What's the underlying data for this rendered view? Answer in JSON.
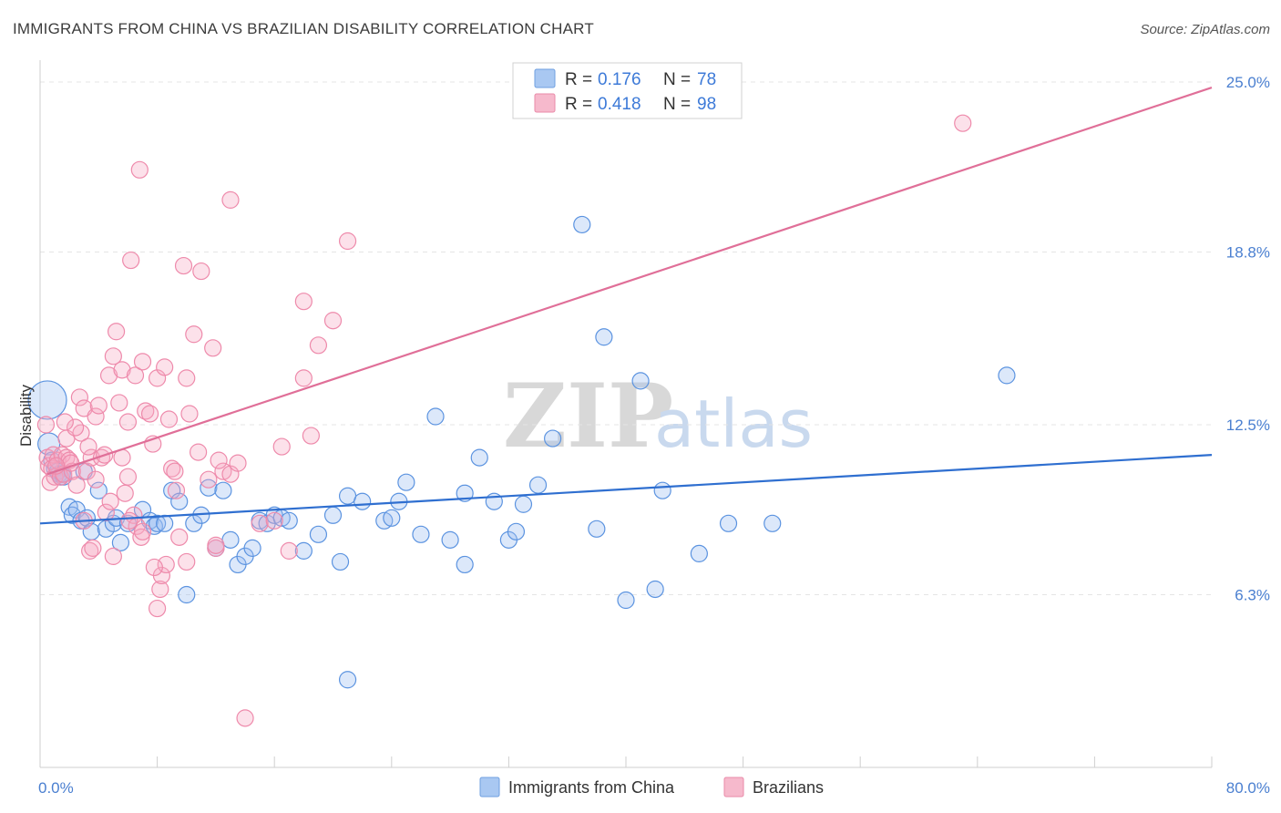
{
  "title": "IMMIGRANTS FROM CHINA VS BRAZILIAN DISABILITY CORRELATION CHART",
  "source": "Source: ZipAtlas.com",
  "watermark": {
    "zip": "ZIP",
    "atlas": "atlas"
  },
  "legend": {
    "r_label": "R =",
    "n_label": "N =",
    "rows": [
      {
        "r": "0.176",
        "n": "78",
        "color": "#a9c8f2",
        "stroke": "#6f9fe0"
      },
      {
        "r": "0.418",
        "n": "98",
        "color": "#f6b9cc",
        "stroke": "#e98aa8"
      }
    ]
  },
  "colors": {
    "china": "#5b93e0",
    "brazil": "#ee8aab",
    "china_line": "#2f6fd0",
    "brazil_line": "#e06f98",
    "tick": "#4a7fd0"
  },
  "chart_data": {
    "type": "scatter",
    "xlabel": "",
    "ylabel": "Disability",
    "xlim": [
      0,
      80
    ],
    "ylim": [
      0,
      25.6
    ],
    "x_tick_labels": [
      {
        "value": 0,
        "label": "0.0%"
      },
      {
        "value": 80,
        "label": "80.0%"
      }
    ],
    "y_tick_labels": [
      {
        "value": 6.3,
        "label": "6.3%"
      },
      {
        "value": 12.5,
        "label": "12.5%"
      },
      {
        "value": 18.8,
        "label": "18.8%"
      },
      {
        "value": 25.0,
        "label": "25.0%"
      }
    ],
    "grid": true,
    "series": [
      {
        "name": "Immigrants from China",
        "trend": {
          "x": [
            0,
            80
          ],
          "y": [
            8.9,
            11.4
          ]
        },
        "points": [
          [
            0.5,
            13.4
          ],
          [
            0.6,
            11.8
          ],
          [
            0.8,
            11.2
          ],
          [
            1.0,
            10.9
          ],
          [
            1.2,
            10.8
          ],
          [
            1.3,
            10.7
          ],
          [
            1.4,
            10.6
          ],
          [
            1.5,
            10.7
          ],
          [
            1.6,
            10.6
          ],
          [
            2,
            9.5
          ],
          [
            2.2,
            9.2
          ],
          [
            2.5,
            9.4
          ],
          [
            2.8,
            9.0
          ],
          [
            3,
            10.8
          ],
          [
            3.2,
            9.1
          ],
          [
            3.5,
            8.6
          ],
          [
            4,
            10.1
          ],
          [
            4.5,
            8.7
          ],
          [
            5,
            8.9
          ],
          [
            5.2,
            9.1
          ],
          [
            5.5,
            8.2
          ],
          [
            6,
            8.9
          ],
          [
            7,
            9.4
          ],
          [
            7.5,
            9.0
          ],
          [
            7.8,
            8.8
          ],
          [
            8,
            8.9
          ],
          [
            8.5,
            8.9
          ],
          [
            9,
            10.1
          ],
          [
            9.5,
            9.7
          ],
          [
            10,
            6.3
          ],
          [
            10.5,
            8.9
          ],
          [
            11,
            9.2
          ],
          [
            11.5,
            10.2
          ],
          [
            12,
            8.0
          ],
          [
            12.5,
            10.1
          ],
          [
            13,
            8.3
          ],
          [
            13.5,
            7.4
          ],
          [
            14,
            7.7
          ],
          [
            14.5,
            8.0
          ],
          [
            15,
            9.0
          ],
          [
            15.5,
            8.9
          ],
          [
            16,
            9.2
          ],
          [
            16.5,
            9.1
          ],
          [
            17,
            9.0
          ],
          [
            18,
            7.9
          ],
          [
            19,
            8.5
          ],
          [
            20,
            9.2
          ],
          [
            20.5,
            7.5
          ],
          [
            21,
            9.9
          ],
          [
            22,
            9.7
          ],
          [
            23.5,
            9.0
          ],
          [
            24,
            9.1
          ],
          [
            24.5,
            9.7
          ],
          [
            25,
            10.4
          ],
          [
            26,
            8.5
          ],
          [
            27,
            12.8
          ],
          [
            28,
            8.3
          ],
          [
            29,
            10.0
          ],
          [
            29,
            7.4
          ],
          [
            30,
            11.3
          ],
          [
            31,
            9.7
          ],
          [
            32,
            8.3
          ],
          [
            32.5,
            8.6
          ],
          [
            33,
            9.6
          ],
          [
            34,
            10.3
          ],
          [
            35,
            12.0
          ],
          [
            37,
            19.8
          ],
          [
            38,
            8.7
          ],
          [
            38.5,
            15.7
          ],
          [
            40,
            6.1
          ],
          [
            41,
            14.1
          ],
          [
            42,
            6.5
          ],
          [
            42.5,
            10.1
          ],
          [
            45,
            7.8
          ],
          [
            47,
            8.9
          ],
          [
            50,
            8.9
          ],
          [
            66,
            14.3
          ],
          [
            21,
            3.2
          ]
        ]
      },
      {
        "name": "Brazilians",
        "trend": {
          "x": [
            0.5,
            80
          ],
          "y": [
            10.7,
            24.8
          ]
        },
        "points": [
          [
            0.4,
            12.5
          ],
          [
            0.5,
            11.3
          ],
          [
            0.6,
            11.0
          ],
          [
            0.7,
            10.4
          ],
          [
            0.8,
            10.9
          ],
          [
            0.9,
            11.4
          ],
          [
            1,
            10.6
          ],
          [
            1.2,
            11.2
          ],
          [
            1.4,
            10.6
          ],
          [
            1.5,
            11.4
          ],
          [
            1.6,
            10.7
          ],
          [
            1.8,
            12.0
          ],
          [
            1.8,
            11.3
          ],
          [
            2,
            11.2
          ],
          [
            2.2,
            10.8
          ],
          [
            2.5,
            10.3
          ],
          [
            2.7,
            13.5
          ],
          [
            2.8,
            12.2
          ],
          [
            3,
            13.1
          ],
          [
            3,
            9.0
          ],
          [
            3.2,
            10.8
          ],
          [
            3.4,
            7.9
          ],
          [
            3.5,
            11.3
          ],
          [
            3.6,
            8.0
          ],
          [
            3.8,
            12.8
          ],
          [
            4,
            13.2
          ],
          [
            4.2,
            11.3
          ],
          [
            4.5,
            9.3
          ],
          [
            4.7,
            14.3
          ],
          [
            4.8,
            9.7
          ],
          [
            5,
            15.0
          ],
          [
            5,
            7.7
          ],
          [
            5.2,
            15.9
          ],
          [
            5.4,
            13.3
          ],
          [
            5.6,
            11.3
          ],
          [
            5.6,
            14.5
          ],
          [
            6,
            12.6
          ],
          [
            6,
            10.6
          ],
          [
            6.2,
            18.5
          ],
          [
            6.4,
            9.2
          ],
          [
            6.5,
            14.3
          ],
          [
            6.6,
            8.8
          ],
          [
            6.8,
            21.8
          ],
          [
            6.9,
            8.4
          ],
          [
            7,
            14.8
          ],
          [
            7,
            8.6
          ],
          [
            7.2,
            13.0
          ],
          [
            7.5,
            12.9
          ],
          [
            7.7,
            11.8
          ],
          [
            8,
            14.2
          ],
          [
            8,
            5.8
          ],
          [
            8.2,
            6.5
          ],
          [
            8.3,
            7.0
          ],
          [
            8.5,
            14.6
          ],
          [
            8.6,
            7.4
          ],
          [
            9,
            10.9
          ],
          [
            9.2,
            10.8
          ],
          [
            9.5,
            8.4
          ],
          [
            9.8,
            18.3
          ],
          [
            10,
            7.5
          ],
          [
            10,
            14.2
          ],
          [
            10.2,
            12.9
          ],
          [
            10.5,
            15.8
          ],
          [
            10.8,
            11.5
          ],
          [
            11,
            18.1
          ],
          [
            11.5,
            10.5
          ],
          [
            11.8,
            15.3
          ],
          [
            12,
            8.0
          ],
          [
            12,
            8.1
          ],
          [
            12.5,
            10.8
          ],
          [
            13,
            10.7
          ],
          [
            13,
            20.7
          ],
          [
            13.5,
            11.1
          ],
          [
            14,
            1.8
          ],
          [
            15,
            8.9
          ],
          [
            16,
            9.0
          ],
          [
            16.5,
            11.7
          ],
          [
            17,
            7.9
          ],
          [
            18,
            17.0
          ],
          [
            18,
            14.2
          ],
          [
            18.5,
            12.1
          ],
          [
            19,
            15.4
          ],
          [
            20,
            16.3
          ],
          [
            21,
            19.2
          ],
          [
            63,
            23.5
          ],
          [
            3.8,
            10.5
          ],
          [
            2.1,
            11.1
          ],
          [
            1.1,
            11.0
          ],
          [
            4.4,
            11.4
          ],
          [
            5.8,
            10.0
          ],
          [
            9.3,
            10.1
          ],
          [
            12.2,
            11.2
          ],
          [
            7.8,
            7.3
          ],
          [
            6.1,
            9.0
          ],
          [
            2.4,
            12.4
          ],
          [
            1.7,
            12.6
          ],
          [
            3.3,
            11.7
          ],
          [
            8.8,
            12.7
          ]
        ]
      }
    ]
  },
  "bottom_legend": [
    {
      "label": "Immigrants from China",
      "color": "#a9c8f2",
      "stroke": "#6f9fe0"
    },
    {
      "label": "Brazilians",
      "color": "#f6b9cc",
      "stroke": "#e98aa8"
    }
  ]
}
